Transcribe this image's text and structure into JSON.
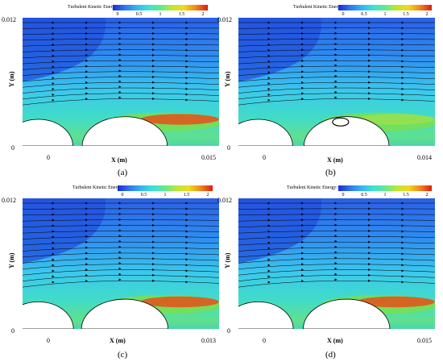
{
  "figure": {
    "colorbar_title": "Turbulent Kinetic Energy:",
    "colorbar_ticks": [
      "0",
      "0.5",
      "1",
      "1.5",
      "2"
    ],
    "colorbar_colors": [
      "#1a2bd8",
      "#34b4f0",
      "#62e890",
      "#f2d820",
      "#e01a12"
    ],
    "y_axis_label": "Y (m)",
    "x_axis_label": "X (m)",
    "panels": [
      {
        "caption": "(a)",
        "y_top": "0.012",
        "y_bottom": "0",
        "x_left": "0",
        "x_right": "0.015"
      },
      {
        "caption": "(b)",
        "y_top": "0.012",
        "y_bottom": "0",
        "x_left": "0",
        "x_right": "0.014"
      },
      {
        "caption": "(c)",
        "y_top": "0.012",
        "y_bottom": "0",
        "x_left": "0",
        "x_right": "0.013"
      },
      {
        "caption": "(d)",
        "y_top": "0.012",
        "y_bottom": "0",
        "x_left": "0",
        "x_right": "0.015"
      }
    ]
  }
}
